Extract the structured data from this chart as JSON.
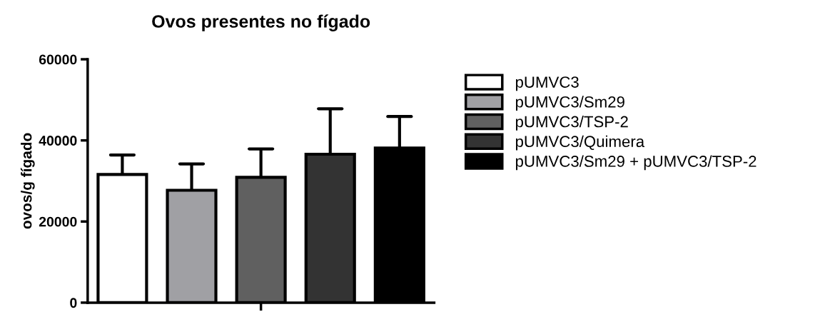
{
  "chart_data": {
    "type": "bar",
    "title": "Ovos presentes no fígado",
    "ylabel": "ovos/g fígado",
    "categories": [
      null
    ],
    "series": [
      {
        "name": "pUMVC3",
        "color": "#ffffff",
        "values": [
          31600
        ],
        "errors": [
          [
            31600,
            36400
          ]
        ]
      },
      {
        "name": "pUMVC3/Sm29",
        "color": "#a0a0a4",
        "values": [
          27700
        ],
        "errors": [
          [
            27700,
            34200
          ]
        ]
      },
      {
        "name": "pUMVC3/TSP-2",
        "color": "#606060",
        "values": [
          30900
        ],
        "errors": [
          [
            30900,
            37900
          ]
        ]
      },
      {
        "name": "pUMVC3/Quimera",
        "color": "#333333",
        "values": [
          36600
        ],
        "errors": [
          [
            36600,
            47800
          ]
        ]
      },
      {
        "name": "pUMVC3/Sm29 + pUMVC3/TSP-2",
        "color": "#000000",
        "values": [
          38100
        ],
        "errors": [
          [
            38100,
            45900
          ]
        ]
      }
    ],
    "ylim": [
      0,
      60000
    ],
    "yticks": [
      0,
      20000,
      40000,
      60000
    ],
    "grid": false,
    "legend": "right"
  }
}
